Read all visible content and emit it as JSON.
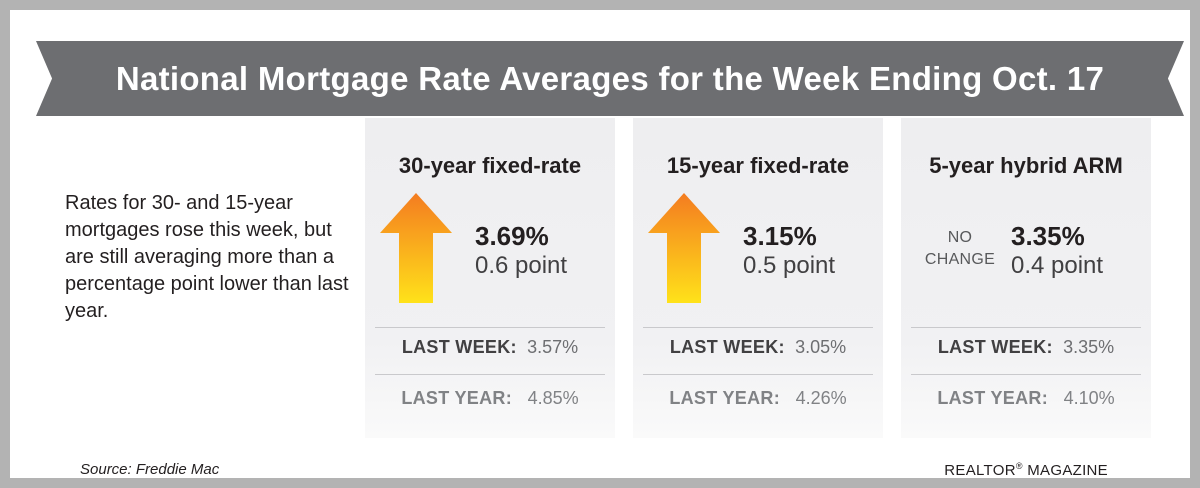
{
  "banner": {
    "title": "National Mortgage Rate Averages for the Week Ending Oct. 17"
  },
  "intro": {
    "text": "Rates for 30- and 15-year mortgages rose this week, but are still averaging more than a percentage point lower than last year."
  },
  "cards": [
    {
      "title": "30-year fixed-rate",
      "indicator": "up-arrow-icon",
      "rate": "3.69%",
      "points": "0.6 point",
      "last_week_label": "LAST WEEK:",
      "last_week_value": "3.57%",
      "last_year_label": "LAST YEAR:",
      "last_year_value": "4.85%"
    },
    {
      "title": "15-year fixed-rate",
      "indicator": "up-arrow-icon",
      "rate": "3.15%",
      "points": "0.5 point",
      "last_week_label": "LAST WEEK:",
      "last_week_value": "3.05%",
      "last_year_label": "LAST YEAR:",
      "last_year_value": "4.26%"
    },
    {
      "title": "5-year hybrid ARM",
      "indicator_line1": "NO",
      "indicator_line2": "CHANGE",
      "rate": "3.35%",
      "points": "0.4 point",
      "last_week_label": "LAST WEEK:",
      "last_week_value": "3.35%",
      "last_year_label": "LAST YEAR:",
      "last_year_value": "4.10%"
    }
  ],
  "footer": {
    "source": "Source: Freddie Mac",
    "publisher_name": "REALTOR",
    "publisher_mark": "®",
    "publisher_suffix": " MAGAZINE"
  },
  "colors": {
    "frame": "#b3b3b3",
    "banner": "#6d6e71",
    "arrow_top": "#f47c20",
    "arrow_bottom": "#ffe21a",
    "card": "#eeeef0"
  }
}
